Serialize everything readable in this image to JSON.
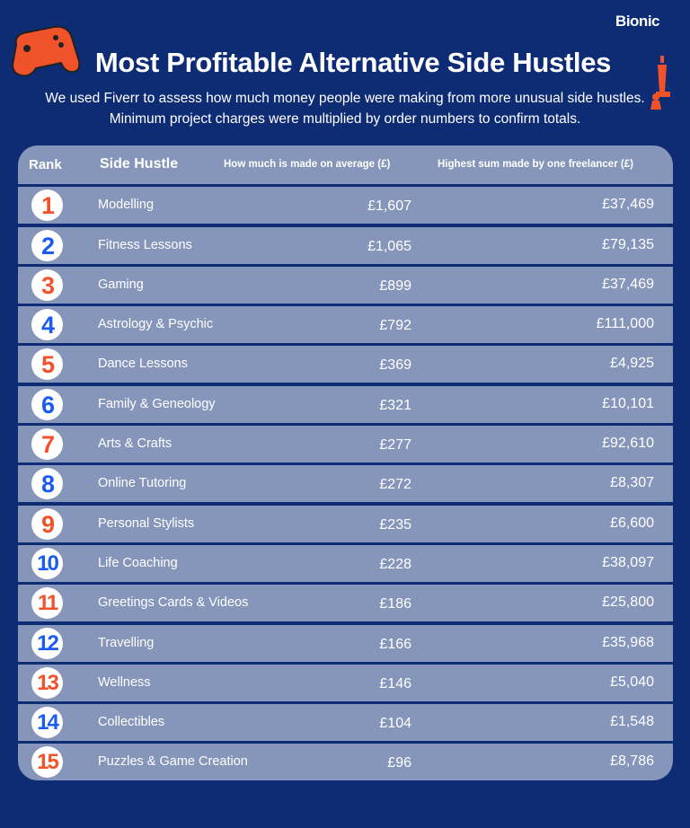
{
  "brand": "Bionic",
  "title": "Most Profitable Alternative Side Hustles",
  "subtitle": "We used Fiverr to assess how much money people were making from more unusual side hustles. Minimum project charges were multiplied by order numbers to confirm totals.",
  "colors": {
    "background": "#0e2c74",
    "row": "#8696ba",
    "orange": "#f0522a",
    "blue": "#1a5cf0"
  },
  "chart_data": {
    "type": "table",
    "columns": [
      "Rank",
      "Side Hustle",
      "How much is made on average (£)",
      "Highest sum made by one freelancer (£)"
    ],
    "rows": [
      {
        "rank": "1",
        "name": "Modelling",
        "avg": "£1,607",
        "high": "£37,469"
      },
      {
        "rank": "2",
        "name": "Fitness Lessons",
        "avg": "£1,065",
        "high": "£79,135"
      },
      {
        "rank": "3",
        "name": "Gaming",
        "avg": "£899",
        "high": "£37,469"
      },
      {
        "rank": "4",
        "name": "Astrology & Psychic",
        "avg": "£792",
        "high": "£111,000"
      },
      {
        "rank": "5",
        "name": "Dance Lessons",
        "avg": "£369",
        "high": "£4,925"
      },
      {
        "rank": "6",
        "name": "Family & Geneology",
        "avg": "£321",
        "high": "£10,101"
      },
      {
        "rank": "7",
        "name": "Arts & Crafts",
        "avg": "£277",
        "high": "£92,610"
      },
      {
        "rank": "8",
        "name": "Online Tutoring",
        "avg": "£272",
        "high": "£8,307"
      },
      {
        "rank": "9",
        "name": "Personal Stylists",
        "avg": "£235",
        "high": "£6,600"
      },
      {
        "rank": "10",
        "name": "Life Coaching",
        "avg": "£228",
        "high": "£38,097"
      },
      {
        "rank": "11",
        "name": "Greetings Cards & Videos",
        "avg": "£186",
        "high": "£25,800"
      },
      {
        "rank": "12",
        "name": "Travelling",
        "avg": "£166",
        "high": "£35,968"
      },
      {
        "rank": "13",
        "name": "Wellness",
        "avg": "£146",
        "high": "£5,040"
      },
      {
        "rank": "14",
        "name": "Collectibles",
        "avg": "£104",
        "high": "£1,548"
      },
      {
        "rank": "15",
        "name": "Puzzles & Game Creation",
        "avg": "£96",
        "high": "£8,786"
      }
    ]
  }
}
